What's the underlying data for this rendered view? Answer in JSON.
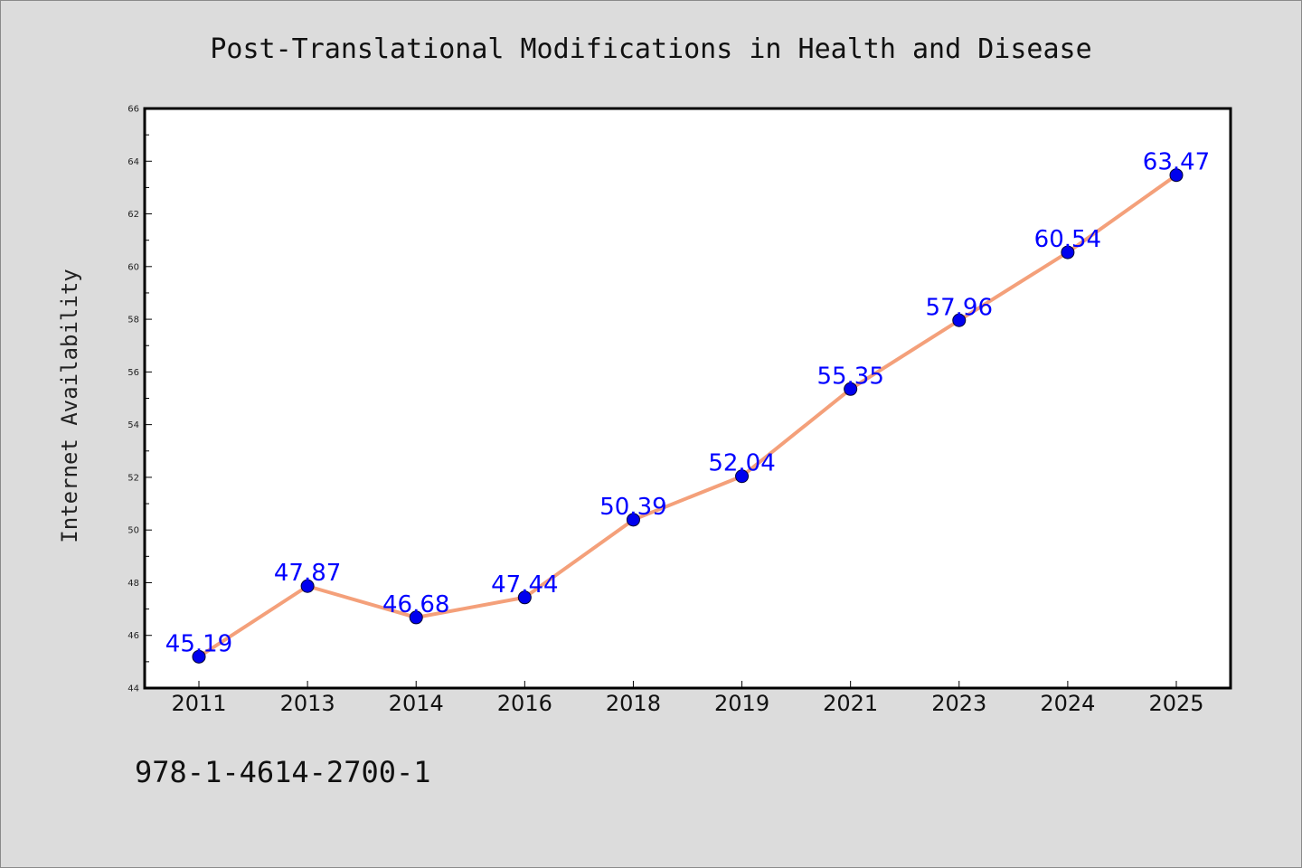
{
  "colors": {
    "background": "#dcdcdc",
    "plot_background": "#ffffff",
    "line": "#f4a07a",
    "marker": "#0000ee",
    "data_label": "#0000ff"
  },
  "footnote": "978-1-4614-2700-1",
  "chart_data": {
    "type": "line",
    "title": "Post-Translational Modifications in Health and Disease",
    "xlabel": "",
    "ylabel": "Internet Availability",
    "categories": [
      "2011",
      "2013",
      "2014",
      "2016",
      "2018",
      "2019",
      "2021",
      "2023",
      "2024",
      "2025"
    ],
    "series": [
      {
        "values": [
          45.19,
          47.87,
          46.68,
          47.44,
          50.39,
          52.04,
          55.35,
          57.96,
          60.54,
          63.47
        ],
        "labels": [
          "45.19",
          "47.87",
          "46.68",
          "47.44",
          "50.39",
          "52.04",
          "55.35",
          "57.96",
          "60.54",
          "63.47"
        ]
      }
    ],
    "ylim": [
      44,
      66
    ],
    "yticks": [
      "44",
      "46",
      "48",
      "50",
      "52",
      "54",
      "56",
      "58",
      "60",
      "62",
      "64",
      "66"
    ],
    "grid": false,
    "legend": "none"
  }
}
